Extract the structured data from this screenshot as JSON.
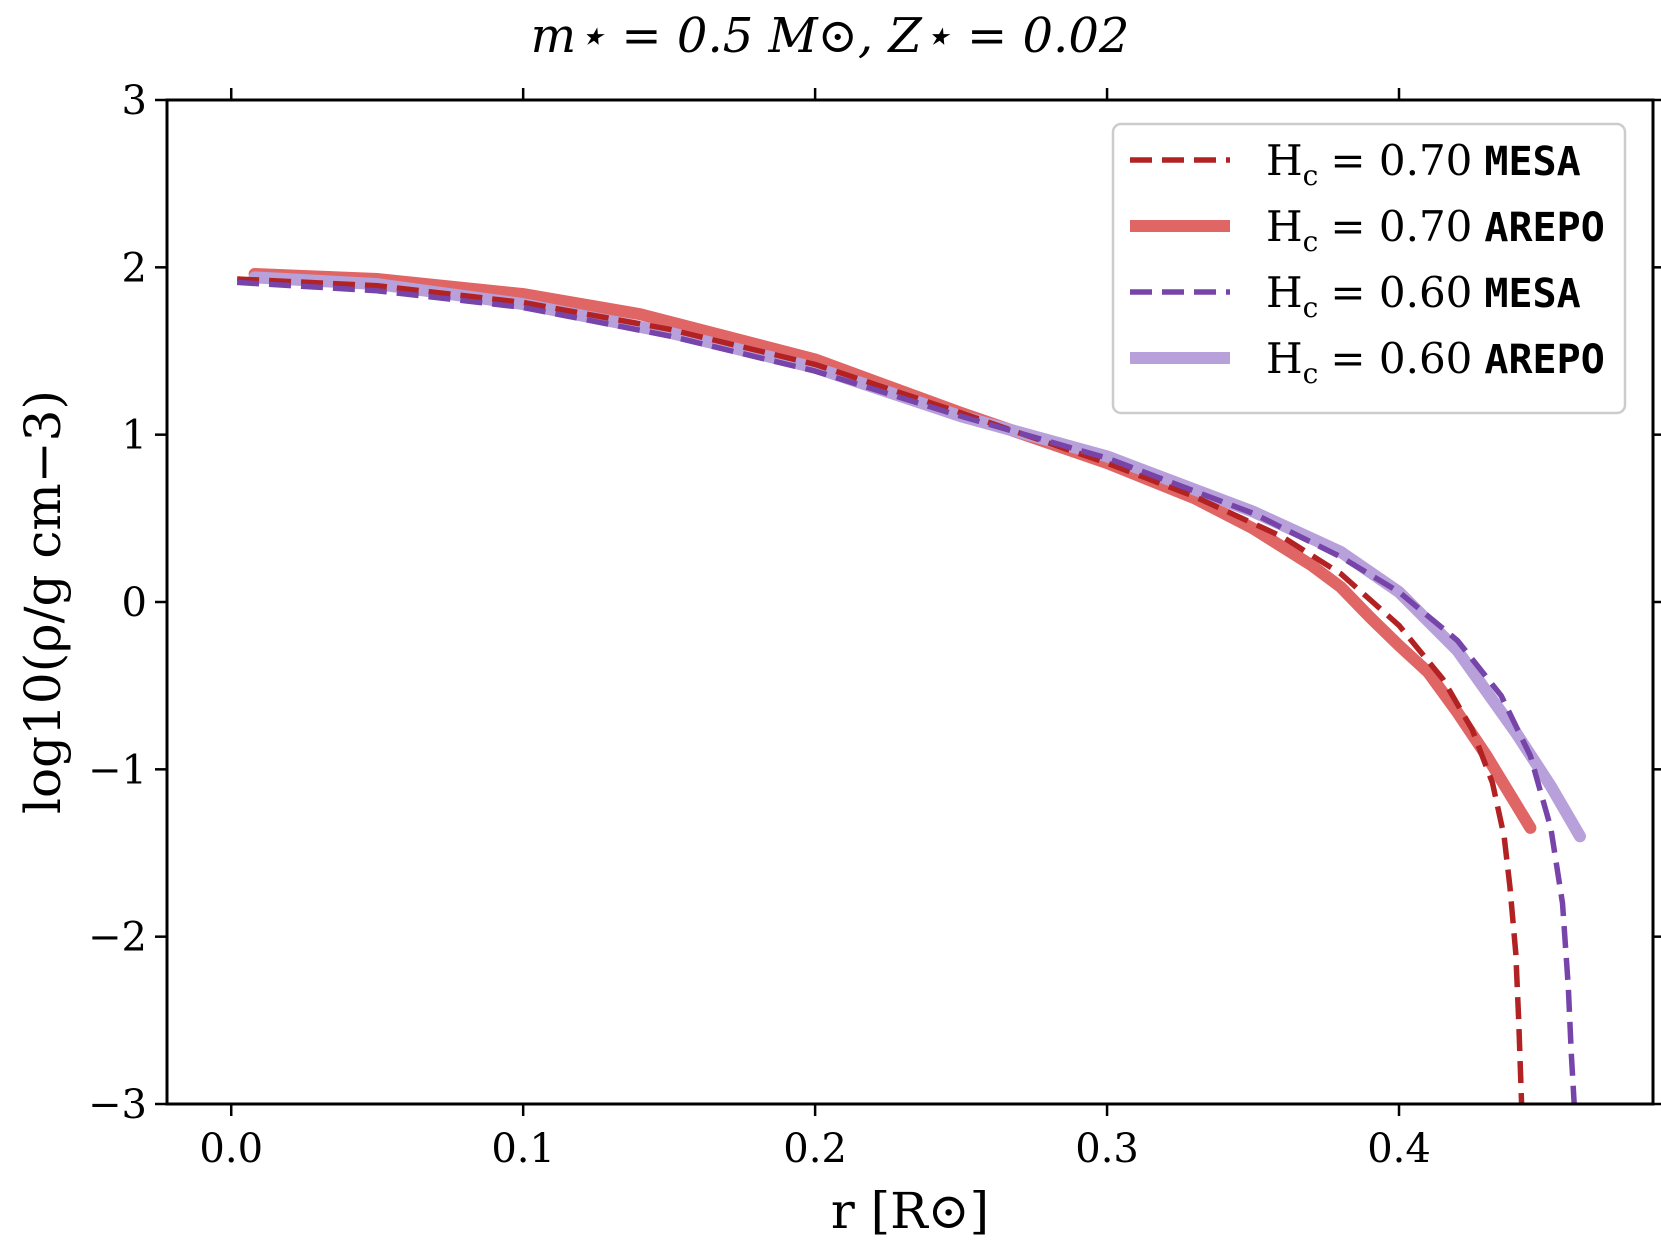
{
  "chart_data": {
    "type": "line",
    "title": "m⋆ = 0.5 M⊙, Z⋆ = 0.02",
    "xlabel": "r [R⊙]",
    "ylabel": "log10(ρ/g cm−3)",
    "xlim": [
      -0.022,
      0.487
    ],
    "ylim": [
      -3,
      3
    ],
    "xticks": [
      0.0,
      0.1,
      0.2,
      0.3,
      0.4
    ],
    "xtick_labels": [
      "0.0",
      "0.1",
      "0.2",
      "0.3",
      "0.4"
    ],
    "yticks": [
      -3,
      -2,
      -1,
      0,
      1,
      2,
      3
    ],
    "ytick_labels": [
      "−3",
      "−2",
      "−1",
      "0",
      "1",
      "2",
      "3"
    ],
    "grid": false,
    "legend_position": "top-right",
    "series": [
      {
        "name": "Hc = 0.70 MESA",
        "legend_label": "H",
        "legend_sub": "c",
        "legend_value": "= 0.70",
        "legend_code": "MESA",
        "color": "#b22222",
        "style": "dashed",
        "x": [
          0.002,
          0.05,
          0.1,
          0.15,
          0.2,
          0.25,
          0.3,
          0.33,
          0.36,
          0.38,
          0.4,
          0.415,
          0.425,
          0.432,
          0.436,
          0.438,
          0.44,
          0.441,
          0.442
        ],
        "y": [
          1.93,
          1.89,
          1.79,
          1.63,
          1.42,
          1.13,
          0.83,
          0.63,
          0.39,
          0.17,
          -0.14,
          -0.46,
          -0.76,
          -1.08,
          -1.4,
          -1.7,
          -2.1,
          -2.5,
          -3.0
        ]
      },
      {
        "name": "Hc = 0.70 AREPO",
        "legend_label": "H",
        "legend_sub": "c",
        "legend_value": "= 0.70",
        "legend_code": "AREPO",
        "color": "#e06666",
        "style": "solid",
        "x": [
          0.008,
          0.05,
          0.1,
          0.14,
          0.2,
          0.25,
          0.3,
          0.33,
          0.35,
          0.37,
          0.38,
          0.39,
          0.4,
          0.41,
          0.42,
          0.43,
          0.445
        ],
        "y": [
          1.96,
          1.93,
          1.84,
          1.72,
          1.45,
          1.13,
          0.83,
          0.62,
          0.44,
          0.22,
          0.09,
          -0.09,
          -0.26,
          -0.42,
          -0.66,
          -0.92,
          -1.35
        ]
      },
      {
        "name": "Hc = 0.60 MESA",
        "legend_label": "H",
        "legend_sub": "c",
        "legend_value": "= 0.60",
        "legend_code": "MESA",
        "color": "#7744aa",
        "style": "dashed",
        "x": [
          0.002,
          0.05,
          0.1,
          0.15,
          0.2,
          0.25,
          0.3,
          0.35,
          0.38,
          0.4,
          0.42,
          0.435,
          0.445,
          0.452,
          0.456,
          0.458,
          0.459,
          0.46
        ],
        "y": [
          1.91,
          1.86,
          1.76,
          1.59,
          1.38,
          1.11,
          0.86,
          0.53,
          0.27,
          0.06,
          -0.23,
          -0.56,
          -0.92,
          -1.35,
          -1.8,
          -2.3,
          -2.7,
          -3.0
        ]
      },
      {
        "name": "Hc = 0.60 AREPO",
        "legend_label": "H",
        "legend_sub": "c",
        "legend_value": "= 0.60",
        "legend_code": "AREPO",
        "color": "#b8a0da",
        "style": "solid",
        "x": [
          0.008,
          0.05,
          0.1,
          0.15,
          0.2,
          0.25,
          0.3,
          0.35,
          0.38,
          0.4,
          0.42,
          0.44,
          0.452,
          0.462
        ],
        "y": [
          1.94,
          1.9,
          1.78,
          1.61,
          1.4,
          1.11,
          0.87,
          0.54,
          0.3,
          0.06,
          -0.29,
          -0.78,
          -1.1,
          -1.4
        ]
      }
    ]
  }
}
